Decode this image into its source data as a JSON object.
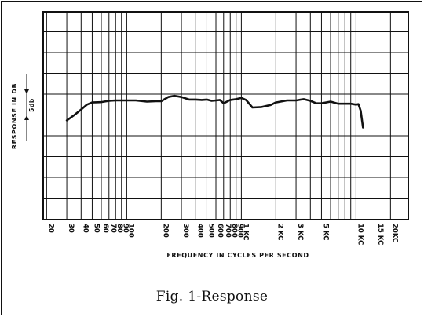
{
  "figure": {
    "caption": "Fig. 1-Response"
  },
  "chart_data": {
    "type": "line",
    "title": "",
    "xlabel": "FREQUENCY IN CYCLES PER SECOND",
    "ylabel": "RESPONSE IN DB",
    "scale_marker": "5db",
    "xscale": "log",
    "xlim": [
      20,
      20000
    ],
    "grid": true,
    "legend": "none",
    "line_color": "#111111",
    "x_tick_labels": [
      {
        "x": 20,
        "label": "20"
      },
      {
        "x": 30,
        "label": "30"
      },
      {
        "x": 40,
        "label": "40"
      },
      {
        "x": 50,
        "label": "50"
      },
      {
        "x": 60,
        "label": "60"
      },
      {
        "x": 70,
        "label": "70"
      },
      {
        "x": 80,
        "label": "80"
      },
      {
        "x": 90,
        "label": "90"
      },
      {
        "x": 100,
        "label": "100"
      },
      {
        "x": 200,
        "label": "200"
      },
      {
        "x": 300,
        "label": "300"
      },
      {
        "x": 400,
        "label": "400"
      },
      {
        "x": 500,
        "label": "500"
      },
      {
        "x": 600,
        "label": "600"
      },
      {
        "x": 700,
        "label": "700"
      },
      {
        "x": 800,
        "label": "800"
      },
      {
        "x": 900,
        "label": "900"
      },
      {
        "x": 1000,
        "label": "1 KC"
      },
      {
        "x": 2000,
        "label": "2 KC"
      },
      {
        "x": 3000,
        "label": "3 KC"
      },
      {
        "x": 5000,
        "label": "5 KC"
      },
      {
        "x": 10000,
        "label": "10 KC"
      },
      {
        "x": 15000,
        "label": "15 KC"
      },
      {
        "x": 20000,
        "label": "20KC"
      }
    ],
    "series": [
      {
        "x": [
          30,
          35,
          40,
          45,
          50,
          60,
          70,
          80,
          100,
          120,
          150,
          180,
          200,
          230,
          260,
          300,
          350,
          400,
          450,
          500,
          550,
          600,
          650,
          700,
          800,
          900,
          1000,
          1100,
          1250,
          1500,
          1800,
          2000,
          2200,
          2500,
          3000,
          3500,
          4000,
          4500,
          5000,
          6000,
          7000,
          8000,
          9000,
          10000,
          10500,
          11000,
          11500
        ],
        "y": [
          -6.3,
          -5.0,
          -3.7,
          -2.5,
          -2.0,
          -1.9,
          -1.6,
          -1.5,
          -1.5,
          -1.5,
          -1.8,
          -1.7,
          -1.7,
          -0.7,
          -0.4,
          -0.7,
          -1.3,
          -1.3,
          -1.4,
          -1.3,
          -1.6,
          -1.5,
          -1.4,
          -2.2,
          -1.4,
          -1.2,
          -0.9,
          -1.4,
          -3.2,
          -3.1,
          -2.6,
          -2.0,
          -1.8,
          -1.5,
          -1.5,
          -1.2,
          -1.6,
          -2.2,
          -2.2,
          -1.8,
          -2.3,
          -2.3,
          -2.3,
          -2.5,
          -2.4,
          -4.0,
          -8.0
        ]
      }
    ]
  }
}
